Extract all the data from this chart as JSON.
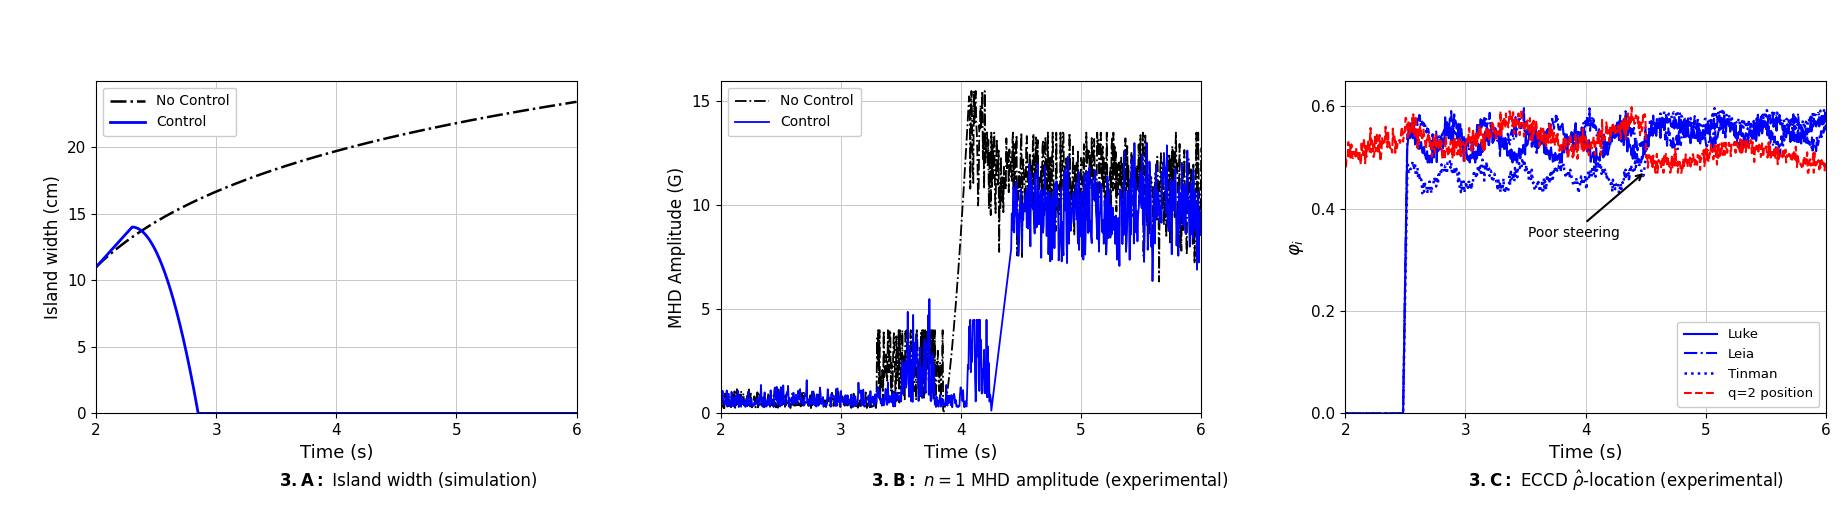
{
  "fig_width": 18.48,
  "fig_height": 5.2,
  "dpi": 100,
  "panel_A": {
    "xlabel": "Time (s)",
    "ylabel": "Island width (cm)",
    "xlim": [
      2,
      6
    ],
    "ylim": [
      0,
      25
    ],
    "yticks": [
      0,
      5,
      10,
      15,
      20
    ],
    "xticks": [
      2,
      3,
      4,
      5,
      6
    ]
  },
  "panel_B": {
    "xlabel": "Time (s)",
    "ylabel": "MHD Amplitude (G)",
    "xlim": [
      2,
      6
    ],
    "ylim": [
      0,
      16
    ],
    "yticks": [
      0,
      5,
      10,
      15
    ],
    "xticks": [
      2,
      3,
      4,
      5,
      6
    ]
  },
  "panel_C": {
    "xlabel": "Time (s)",
    "ylabel": "phi_i",
    "xlim": [
      2,
      6
    ],
    "ylim": [
      0,
      0.65
    ],
    "yticks": [
      0,
      0.2,
      0.4,
      0.6
    ],
    "xticks": [
      2,
      3,
      4,
      5,
      6
    ]
  }
}
